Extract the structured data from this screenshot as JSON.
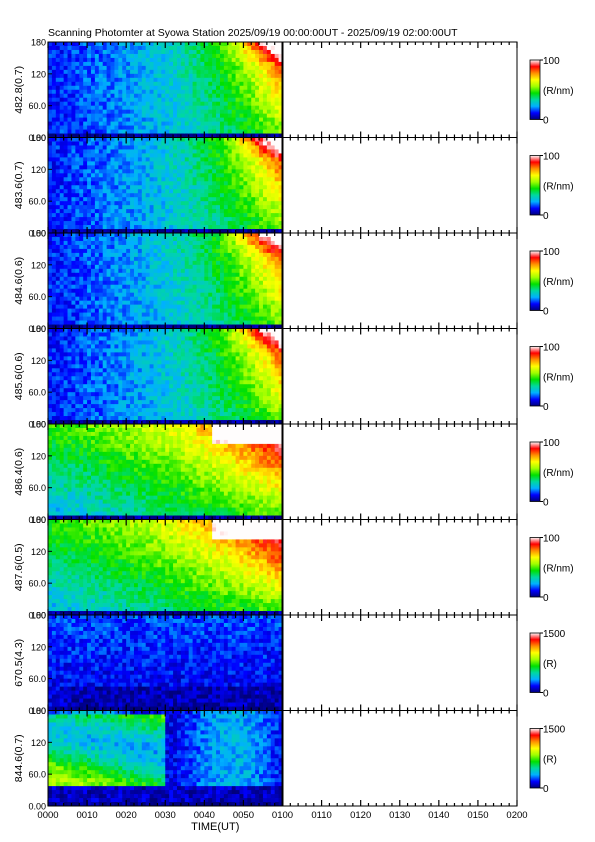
{
  "chart_data": {
    "type": "heatmap",
    "title": "Scanning Photomter at Syowa Station 2025/09/19 00:00:00UT - 2025/09/19 02:00:00UT",
    "xlabel": "TIME(UT)",
    "xticks": [
      "0000",
      "0010",
      "0020",
      "0030",
      "0040",
      "0050",
      "0100",
      "0110",
      "0120",
      "0130",
      "0140",
      "0150",
      "0200"
    ],
    "xlim_minutes": [
      0,
      120
    ],
    "data_end_minute": 60,
    "yticks": [
      "0.00",
      "60.0",
      "120",
      "180"
    ],
    "ylim": [
      0,
      180
    ],
    "panels": [
      {
        "ylabel": "482.8(0.7)",
        "cbar_max": "100",
        "cbar_min": "0",
        "unit": "(R/nm)",
        "style": "blue"
      },
      {
        "ylabel": "483.6(0.7)",
        "cbar_max": "100",
        "cbar_min": "0",
        "unit": "(R/nm)",
        "style": "blue"
      },
      {
        "ylabel": "484.6(0.6)",
        "cbar_max": "100",
        "cbar_min": "0",
        "unit": "(R/nm)",
        "style": "blue"
      },
      {
        "ylabel": "485.6(0.6)",
        "cbar_max": "100",
        "cbar_min": "0",
        "unit": "(R/nm)",
        "style": "blue"
      },
      {
        "ylabel": "486.4(0.6)",
        "cbar_max": "100",
        "cbar_min": "0",
        "unit": "(R/nm)",
        "style": "green"
      },
      {
        "ylabel": "487.6(0.5)",
        "cbar_max": "100",
        "cbar_min": "0",
        "unit": "(R/nm)",
        "style": "green"
      },
      {
        "ylabel": "670.5(4.3)",
        "cbar_max": "1500",
        "cbar_min": "0",
        "unit": "(R)",
        "style": "dark"
      },
      {
        "ylabel": "844.6(0.7)",
        "cbar_max": "1500",
        "cbar_min": "0",
        "unit": "(R)",
        "style": "aurora"
      }
    ],
    "colorscale": [
      "#00007a",
      "#0000ff",
      "#00b0ff",
      "#00d8a0",
      "#00e000",
      "#a0ff00",
      "#ffff00",
      "#ff9000",
      "#ff0000",
      "#ffffff"
    ]
  }
}
